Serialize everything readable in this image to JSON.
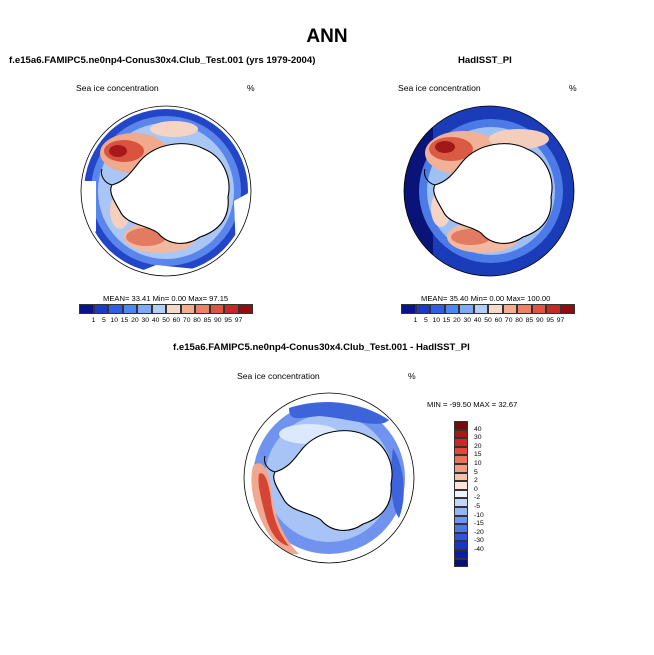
{
  "page_title": "ANN",
  "colors": {
    "cmap12": [
      "#08148c",
      "#1d3bbf",
      "#2f5fe0",
      "#4f86ee",
      "#7daaf3",
      "#b2cef7",
      "#f7d9cc",
      "#f2ad91",
      "#e9806a",
      "#db5444",
      "#c12a26",
      "#8c0d12"
    ],
    "cmap17": [
      "#081070",
      "#0b1fa1",
      "#1636c6",
      "#2f56de",
      "#4d76ea",
      "#7095f0",
      "#96b4f4",
      "#c2d6f9",
      "#eef4fd",
      "#fde3d8",
      "#f8c1ab",
      "#f29c83",
      "#e9745d",
      "#dd4c3a",
      "#c92b22",
      "#ab1712",
      "#7a0808"
    ]
  },
  "chart_data": [
    {
      "type": "heatmap",
      "projection": "south-polar-stereographic",
      "title": "f.e15a6.FAMIPC5.ne0np4-Conus30x4.Club_Test.001 (yrs 1979-2004)",
      "variable": "Sea ice concentration",
      "units": "%",
      "stats": {
        "mean": "33.41",
        "min": "0.00",
        "max": "97.15"
      },
      "stats_text": "MEAN=  33.41  Min=   0.00  Max=  97.15",
      "colorbar_levels": [
        "1",
        "5",
        "10",
        "15",
        "20",
        "30",
        "40",
        "50",
        "60",
        "70",
        "80",
        "85",
        "90",
        "95",
        "97"
      ]
    },
    {
      "type": "heatmap",
      "projection": "south-polar-stereographic",
      "title": "HadISST_PI",
      "variable": "Sea ice concentration",
      "units": "%",
      "stats": {
        "mean": "35.40",
        "min": "0.00",
        "max": "100.00"
      },
      "stats_text": "MEAN=  35.40  Min=   0.00  Max= 100.00",
      "colorbar_levels": [
        "1",
        "5",
        "10",
        "15",
        "20",
        "30",
        "40",
        "50",
        "60",
        "70",
        "80",
        "85",
        "90",
        "95",
        "97"
      ]
    },
    {
      "type": "heatmap",
      "projection": "south-polar-stereographic",
      "title": "f.e15a6.FAMIPC5.ne0np4-Conus30x4.Club_Test.001 - HadISST_PI",
      "variable": "Sea ice concentration",
      "units": "%",
      "stats": {
        "min": "-99.50",
        "max": "32.67"
      },
      "stats_text": "MIN = -99.50 MAX =  32.67",
      "colorbar_levels": [
        "40",
        "30",
        "20",
        "15",
        "10",
        "5",
        "2",
        "0",
        "-2",
        "-5",
        "-10",
        "-15",
        "-20",
        "-30",
        "-40"
      ]
    }
  ]
}
